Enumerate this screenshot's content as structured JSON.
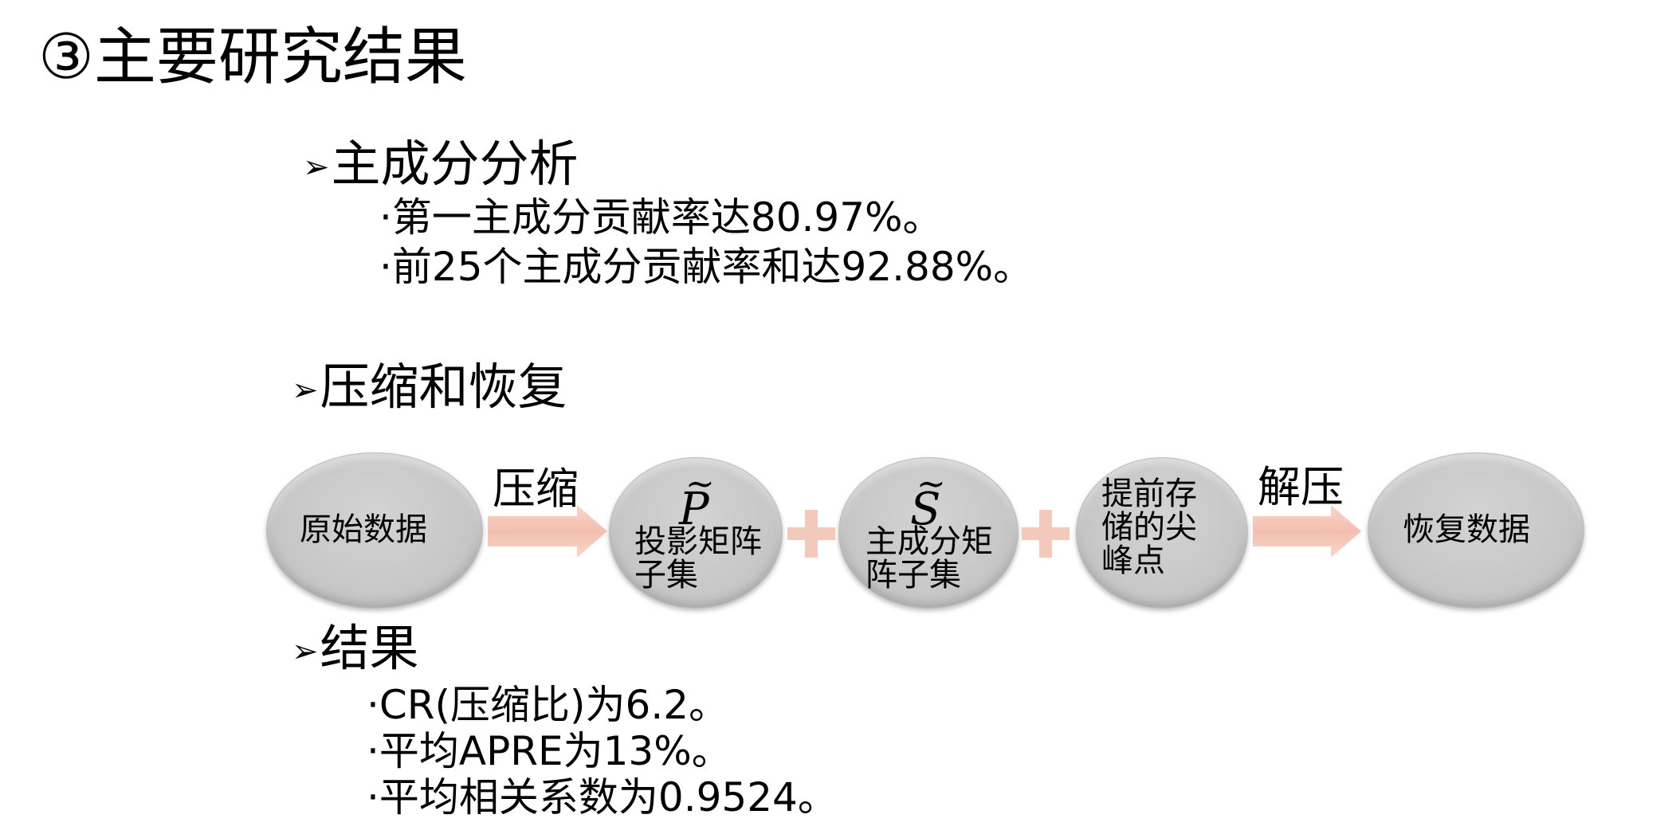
{
  "slide": {
    "title": "③主要研究结果"
  },
  "sections": {
    "pca": {
      "marker": "➢",
      "heading": "主成分分析",
      "bullets": [
        "·第一主成分贡献率达80.97%。",
        "·前25个主成分贡献率和达92.88%。"
      ]
    },
    "compression": {
      "marker": "➢",
      "heading": "压缩和恢复"
    },
    "results": {
      "marker": "➢",
      "heading": "结果",
      "bullets": [
        "·CR(压缩比)为6.2。",
        "·平均APRE为13%。",
        "·平均相关系数为0.9524。"
      ]
    }
  },
  "flow": {
    "original_data": "原始数据",
    "compress_label": "压缩",
    "p_symbol": "P",
    "p_tilde": "~",
    "p_caption_line1": "投影矩阵",
    "p_caption_line2": "子集",
    "s_symbol": "S",
    "s_tilde": "~",
    "s_caption_line1": "主成分矩",
    "s_caption_line2": "阵子集",
    "peaks_line1": "提前存",
    "peaks_line2": "储的尖",
    "peaks_line3": "峰点",
    "decompress_label": "解压",
    "recovered_data": "恢复数据",
    "colors": {
      "ellipse": "#c8c8c8",
      "arrow_fill": "#f5c4b4",
      "plus_fill": "#f3c9bc"
    }
  }
}
